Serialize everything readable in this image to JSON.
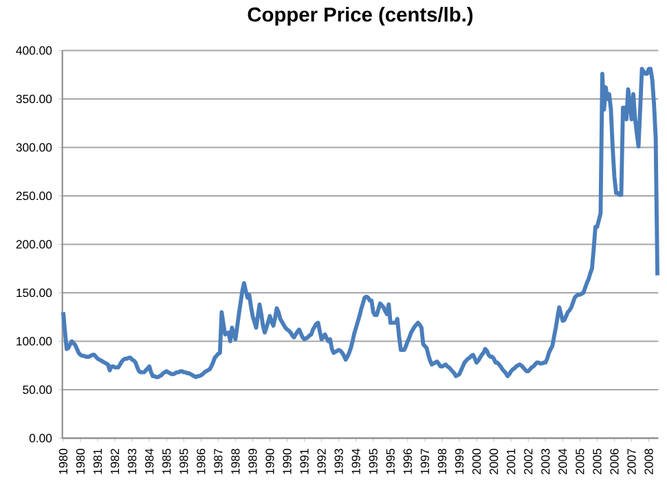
{
  "chart_data": {
    "type": "line",
    "title": "Copper Price (cents/lb.)",
    "categories": [
      "1980",
      null,
      null,
      null,
      null,
      null,
      null,
      null,
      null,
      null,
      "1980",
      null,
      null,
      null,
      null,
      null,
      null,
      null,
      null,
      null,
      "1981",
      null,
      null,
      null,
      null,
      null,
      null,
      null,
      null,
      null,
      "1982",
      null,
      null,
      null,
      null,
      null,
      null,
      null,
      null,
      null,
      "1983",
      null,
      null,
      null,
      null,
      null,
      null,
      null,
      null,
      null,
      "1984",
      null,
      null,
      null,
      null,
      null,
      null,
      null,
      null,
      null,
      "1985",
      null,
      null,
      null,
      null,
      null,
      null,
      null,
      null,
      null,
      "1985",
      null,
      null,
      null,
      null,
      null,
      null,
      null,
      null,
      null,
      "1986",
      null,
      null,
      null,
      null,
      null,
      null,
      null,
      null,
      null,
      "1987",
      null,
      null,
      null,
      null,
      null,
      null,
      null,
      null,
      null,
      "1988",
      null,
      null,
      null,
      null,
      null,
      null,
      null,
      null,
      null,
      "1989",
      null,
      null,
      null,
      null,
      null,
      null,
      null,
      null,
      null,
      "1990",
      null,
      null,
      null,
      null,
      null,
      null,
      null,
      null,
      null,
      "1990",
      null,
      null,
      null,
      null,
      null,
      null,
      null,
      null,
      null,
      "1991",
      null,
      null,
      null,
      null,
      null,
      null,
      null,
      null,
      null,
      "1992",
      null,
      null,
      null,
      null,
      null,
      null,
      null,
      null,
      null,
      "1993",
      null,
      null,
      null,
      null,
      null,
      null,
      null,
      null,
      null,
      "1994",
      null,
      null,
      null,
      null,
      null,
      null,
      null,
      null,
      null,
      "1995",
      null,
      null,
      null,
      null,
      null,
      null,
      null,
      null,
      null,
      "1995",
      null,
      null,
      null,
      null,
      null,
      null,
      null,
      null,
      null,
      "1996",
      null,
      null,
      null,
      null,
      null,
      null,
      null,
      null,
      null,
      "1997",
      null,
      null,
      null,
      null,
      null,
      null,
      null,
      null,
      null,
      "1998",
      null,
      null,
      null,
      null,
      null,
      null,
      null,
      null,
      null,
      "1999",
      null,
      null,
      null,
      null,
      null,
      null,
      null,
      null,
      null,
      "2000",
      null,
      null,
      null,
      null,
      null,
      null,
      null,
      null,
      null,
      "2000",
      null,
      null,
      null,
      null,
      null,
      null,
      null,
      null,
      null,
      "2001",
      null,
      null,
      null,
      null,
      null,
      null,
      null,
      null,
      null,
      "2002",
      null,
      null,
      null,
      null,
      null,
      null,
      null,
      null,
      null,
      "2003",
      null,
      null,
      null,
      null,
      null,
      null,
      null,
      null,
      null,
      "2004",
      null,
      null,
      null,
      null,
      null,
      null,
      null,
      null,
      null,
      "2005",
      null,
      null,
      null,
      null,
      null,
      null,
      null,
      null,
      null,
      "2005",
      null,
      null,
      null,
      null,
      null,
      null,
      null,
      null,
      null,
      "2006",
      null,
      null,
      null,
      null,
      null,
      null,
      null,
      null,
      null,
      "2007",
      null,
      null,
      null,
      null,
      null,
      null,
      null,
      null,
      null,
      "2008",
      null,
      null,
      null,
      null,
      null
    ],
    "values": [
      130,
      110,
      92,
      93,
      97,
      100,
      98,
      96,
      92,
      88,
      86,
      85,
      85,
      84,
      84,
      84,
      85,
      86,
      86,
      84,
      82,
      81,
      80,
      79,
      78,
      77,
      76,
      70,
      74,
      74,
      73,
      73,
      73,
      76,
      79,
      81,
      82,
      82,
      83,
      83,
      81,
      80,
      78,
      73,
      69,
      68,
      68,
      68,
      70,
      72,
      74,
      68,
      64,
      64,
      63,
      63,
      64,
      65,
      67,
      68,
      69,
      68,
      67,
      66,
      66,
      67,
      68,
      68,
      69,
      69,
      68,
      68,
      67,
      67,
      66,
      65,
      64,
      63,
      64,
      64,
      65,
      66,
      68,
      69,
      70,
      71,
      74,
      78,
      83,
      85,
      87,
      88,
      130,
      118,
      107,
      108,
      109,
      100,
      114,
      108,
      102,
      115,
      128,
      140,
      152,
      160,
      152,
      145,
      148,
      136,
      126,
      120,
      114,
      126,
      138,
      128,
      116,
      109,
      114,
      120,
      126,
      120,
      116,
      124,
      134,
      130,
      123,
      120,
      117,
      114,
      112,
      111,
      109,
      106,
      104,
      107,
      110,
      112,
      108,
      104,
      102,
      103,
      104,
      106,
      107,
      112,
      115,
      118,
      119,
      110,
      102,
      104,
      107,
      103,
      100,
      102,
      92,
      88,
      89,
      90,
      91,
      90,
      88,
      85,
      81,
      84,
      88,
      93,
      100,
      108,
      114,
      120,
      126,
      133,
      139,
      145,
      146,
      145,
      142,
      142,
      130,
      127,
      127,
      133,
      139,
      137,
      135,
      131,
      128,
      138,
      119,
      119,
      119,
      119,
      123,
      105,
      91,
      91,
      91,
      95,
      100,
      104,
      109,
      112,
      115,
      117,
      119,
      117,
      114,
      97,
      95,
      93,
      86,
      80,
      76,
      77,
      78,
      79,
      77,
      74,
      74,
      75,
      76,
      74,
      73,
      71,
      69,
      67,
      64,
      65,
      66,
      70,
      74,
      78,
      80,
      82,
      83,
      85,
      86,
      82,
      78,
      80,
      83,
      86,
      88,
      92,
      90,
      86,
      84,
      84,
      82,
      78,
      78,
      76,
      74,
      71,
      69,
      67,
      64,
      66,
      69,
      71,
      72,
      74,
      75,
      76,
      75,
      73,
      71,
      69,
      69,
      71,
      73,
      74,
      76,
      78,
      78,
      77,
      77,
      78,
      78,
      82,
      88,
      92,
      95,
      105,
      114,
      125,
      135,
      128,
      121,
      122,
      126,
      130,
      132,
      135,
      140,
      145,
      147,
      148,
      148,
      149,
      150,
      155,
      160,
      164,
      170,
      175,
      195,
      218,
      218,
      225,
      232,
      376,
      339,
      362,
      350,
      355,
      339,
      300,
      270,
      253,
      253,
      251,
      251,
      341,
      341,
      329,
      360,
      345,
      329,
      355,
      330,
      315,
      301,
      340,
      381,
      378,
      376,
      376,
      381,
      381,
      370,
      345,
      310,
      168
    ],
    "color": "#4a7ebb",
    "ylim": [
      0,
      400
    ],
    "yticks": [
      {
        "value": 0,
        "label": "0.00"
      },
      {
        "value": 50,
        "label": "50.00"
      },
      {
        "value": 100,
        "label": "100.00"
      },
      {
        "value": 150,
        "label": "150.00"
      },
      {
        "value": 200,
        "label": "200.00"
      },
      {
        "value": 250,
        "label": "250.00"
      },
      {
        "value": 300,
        "label": "300.00"
      },
      {
        "value": 350,
        "label": "350.00"
      },
      {
        "value": 400,
        "label": "400.00"
      }
    ],
    "grid": "y",
    "line_style": "solid",
    "marker": "none"
  }
}
